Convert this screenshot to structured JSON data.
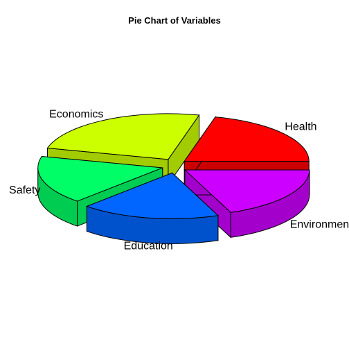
{
  "chart_data": {
    "type": "pie",
    "style": "3d-exploded",
    "title": "Pie Chart of Variables",
    "slices": [
      {
        "label": "Health",
        "value": 21,
        "color": "#FF0000"
      },
      {
        "label": "Economics",
        "value": 25,
        "color": "#CCFF00"
      },
      {
        "label": "Safety",
        "value": 17,
        "color": "#00FF66"
      },
      {
        "label": "Education",
        "value": 18,
        "color": "#0066FF"
      },
      {
        "label": "Environment",
        "value": 19,
        "color": "#CC00FF"
      }
    ]
  }
}
